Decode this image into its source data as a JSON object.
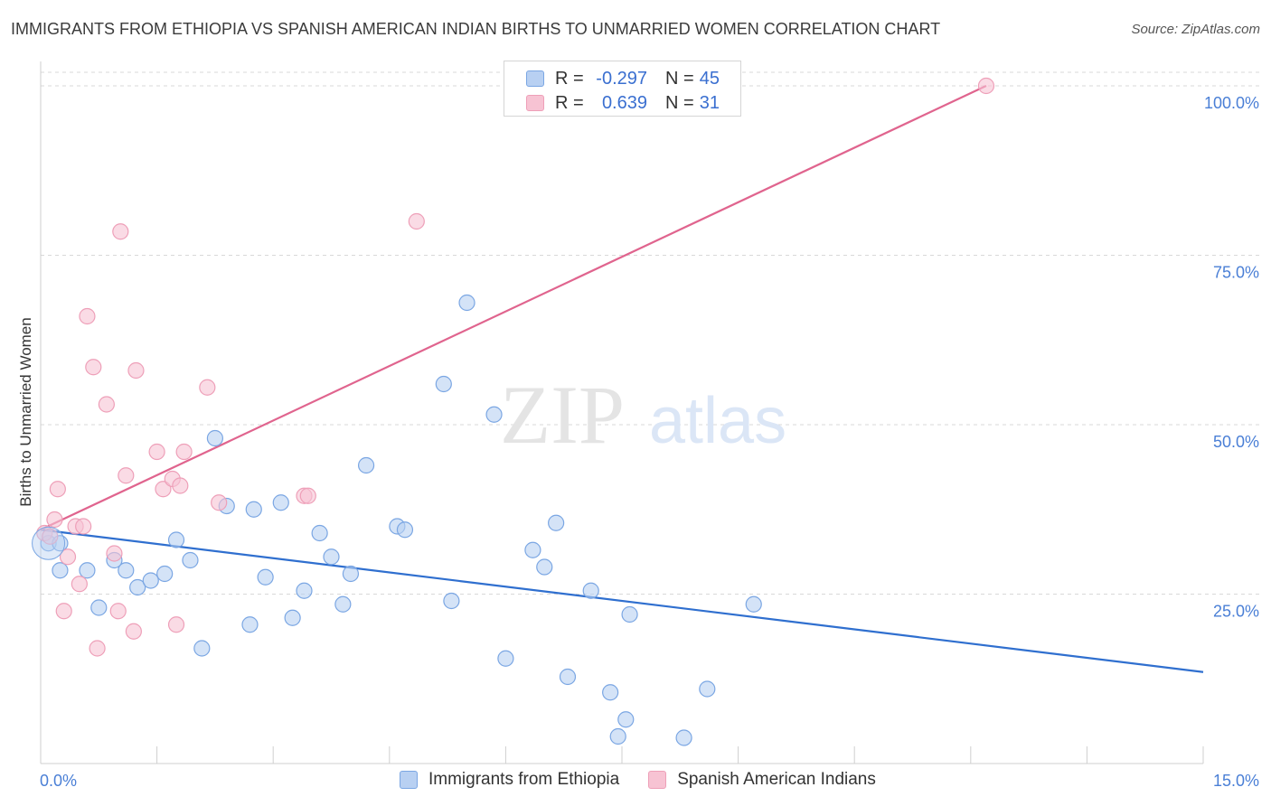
{
  "title": "IMMIGRANTS FROM ETHIOPIA VS SPANISH AMERICAN INDIAN BIRTHS TO UNMARRIED WOMEN CORRELATION CHART",
  "source": "Source: ZipAtlas.com",
  "watermark": {
    "zip": "ZIP",
    "atlas": "atlas"
  },
  "colors": {
    "blue_fill": "#b8d0f2",
    "blue_stroke": "#7aa6e3",
    "blue_line": "#2f6fcf",
    "pink_fill": "#f7c3d3",
    "pink_stroke": "#ee9fb8",
    "pink_line": "#e0648e",
    "tick_text": "#4a7fd6",
    "grid": "#d8d8d8"
  },
  "legend_top": [
    {
      "r_label": "R =",
      "r_value": "-0.297",
      "n_label": "N =",
      "n_value": "45"
    },
    {
      "r_label": "R =",
      "r_value": "0.639",
      "n_label": "N =",
      "n_value": "31"
    }
  ],
  "legend_bottom": [
    "Immigrants from Ethiopia",
    "Spanish American Indians"
  ],
  "chart_data": {
    "type": "scatter",
    "title": "IMMIGRANTS FROM ETHIOPIA VS SPANISH AMERICAN INDIAN BIRTHS TO UNMARRIED WOMEN CORRELATION CHART",
    "xlabel": "",
    "ylabel": "Births to Unmarried Women",
    "xlim": [
      0,
      15
    ],
    "ylim": [
      0,
      102
    ],
    "x_tick_labels": [
      "0.0%",
      "15.0%"
    ],
    "y_ticks": [
      25,
      50,
      75,
      100
    ],
    "y_tick_labels": [
      "25.0%",
      "50.0%",
      "75.0%",
      "100.0%"
    ],
    "grid": "horizontal dashed",
    "legend_position": "top-center",
    "series": [
      {
        "name": "Immigrants from Ethiopia",
        "color": "#b8d0f2",
        "points": [
          [
            0.1,
            32.5
          ],
          [
            0.25,
            32.5
          ],
          [
            0.25,
            28.5
          ],
          [
            0.6,
            28.5
          ],
          [
            0.75,
            23.0
          ],
          [
            0.95,
            30.0
          ],
          [
            1.1,
            28.5
          ],
          [
            1.25,
            26.0
          ],
          [
            1.42,
            27.0
          ],
          [
            1.6,
            28.0
          ],
          [
            1.75,
            33.0
          ],
          [
            1.93,
            30.0
          ],
          [
            2.08,
            17.0
          ],
          [
            2.25,
            48.0
          ],
          [
            2.4,
            38.0
          ],
          [
            2.7,
            20.5
          ],
          [
            2.75,
            37.5
          ],
          [
            2.9,
            27.5
          ],
          [
            3.1,
            38.5
          ],
          [
            3.25,
            21.5
          ],
          [
            3.4,
            25.5
          ],
          [
            3.6,
            34.0
          ],
          [
            3.75,
            30.5
          ],
          [
            3.9,
            23.5
          ],
          [
            4.0,
            28.0
          ],
          [
            4.2,
            44.0
          ],
          [
            4.6,
            35.0
          ],
          [
            4.7,
            34.5
          ],
          [
            5.2,
            56.0
          ],
          [
            5.3,
            24.0
          ],
          [
            5.5,
            68.0
          ],
          [
            5.85,
            51.5
          ],
          [
            6.0,
            15.5
          ],
          [
            6.35,
            31.5
          ],
          [
            6.5,
            29.0
          ],
          [
            6.65,
            35.5
          ],
          [
            6.8,
            12.8
          ],
          [
            7.1,
            25.5
          ],
          [
            7.35,
            10.5
          ],
          [
            7.45,
            4.0
          ],
          [
            7.55,
            6.5
          ],
          [
            7.6,
            22.0
          ],
          [
            8.3,
            3.8
          ],
          [
            8.6,
            11.0
          ],
          [
            9.2,
            23.5
          ]
        ]
      },
      {
        "name": "Spanish American Indians",
        "color": "#f7c3d3",
        "points": [
          [
            0.05,
            34.0
          ],
          [
            0.12,
            33.5
          ],
          [
            0.18,
            36.0
          ],
          [
            0.22,
            40.5
          ],
          [
            0.3,
            22.5
          ],
          [
            0.35,
            30.5
          ],
          [
            0.45,
            35.0
          ],
          [
            0.5,
            26.5
          ],
          [
            0.55,
            35.0
          ],
          [
            0.6,
            66.0
          ],
          [
            0.68,
            58.5
          ],
          [
            0.73,
            17.0
          ],
          [
            0.85,
            53.0
          ],
          [
            0.95,
            31.0
          ],
          [
            1.0,
            22.5
          ],
          [
            1.03,
            78.5
          ],
          [
            1.1,
            42.5
          ],
          [
            1.2,
            19.5
          ],
          [
            1.23,
            58.0
          ],
          [
            1.5,
            46.0
          ],
          [
            1.58,
            40.5
          ],
          [
            1.7,
            42.0
          ],
          [
            1.75,
            20.5
          ],
          [
            1.85,
            46.0
          ],
          [
            1.8,
            41.0
          ],
          [
            2.15,
            55.5
          ],
          [
            2.3,
            38.5
          ],
          [
            3.4,
            39.5
          ],
          [
            3.45,
            39.5
          ],
          [
            4.85,
            80.0
          ],
          [
            12.2,
            100.0
          ]
        ]
      }
    ],
    "trend_lines": [
      {
        "series": "Immigrants from Ethiopia",
        "x": [
          0,
          15
        ],
        "y": [
          34.5,
          13.5
        ]
      },
      {
        "series": "Spanish American Indians",
        "x": [
          0,
          12.2
        ],
        "y": [
          34.5,
          100.0
        ]
      }
    ]
  }
}
